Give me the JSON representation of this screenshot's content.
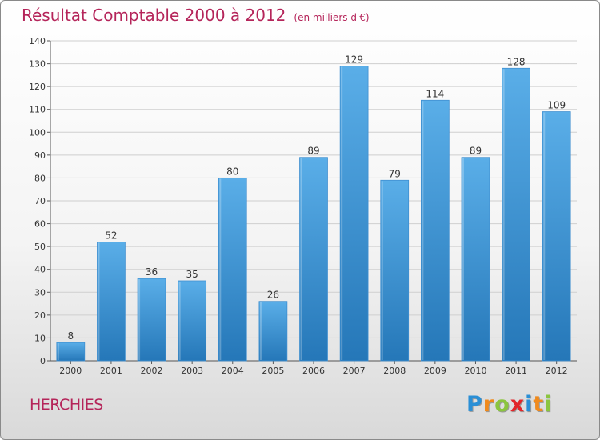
{
  "title": "Résultat Comptable 2000 à 2012",
  "subtitle": "(en milliers d'€)",
  "footer_label": "HERCHIES",
  "logo": {
    "letters": [
      "P",
      "r",
      "o",
      "x",
      "i",
      "t",
      "i"
    ],
    "colors": [
      "#2a8fd6",
      "#f08a1c",
      "#8bc53f",
      "#e2262a",
      "#2a8fd6",
      "#f08a1c",
      "#8bc53f"
    ]
  },
  "chart_data": {
    "type": "bar",
    "title": "Résultat Comptable 2000 à 2012",
    "subtitle": "(en milliers d'€)",
    "categories": [
      "2000",
      "2001",
      "2002",
      "2003",
      "2004",
      "2005",
      "2006",
      "2007",
      "2008",
      "2009",
      "2010",
      "2011",
      "2012"
    ],
    "values": [
      8,
      52,
      36,
      35,
      80,
      26,
      89,
      129,
      79,
      114,
      89,
      128,
      109
    ],
    "ylim": [
      0,
      140
    ],
    "yticks": [
      0,
      10,
      20,
      30,
      40,
      50,
      60,
      70,
      80,
      90,
      100,
      110,
      120,
      130,
      140
    ],
    "grid": true,
    "bar_color_light": "#5aaee8",
    "bar_color_dark": "#2577b8"
  }
}
